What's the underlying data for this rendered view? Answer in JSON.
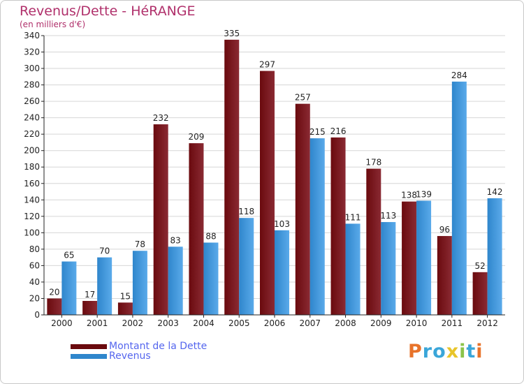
{
  "colors": {
    "debt": "#6a0a0e",
    "debt_light": "#8a2a33",
    "revenue": "#2f86cc",
    "revenue_light": "#5aaaea",
    "title": "#b0306b",
    "legend_text": "#5566ee"
  },
  "chart_data": {
    "type": "bar",
    "title": "Revenus/Dette - HéRANGE",
    "subtitle": "(en milliers d'€)",
    "xlabel": "",
    "ylabel": "",
    "ylim": [
      0,
      340
    ],
    "yticks": [
      0,
      20,
      40,
      60,
      80,
      100,
      120,
      140,
      160,
      180,
      200,
      220,
      240,
      260,
      280,
      300,
      320,
      340
    ],
    "grid": true,
    "legend_position": "bottom-left",
    "categories": [
      "2000",
      "2001",
      "2002",
      "2003",
      "2004",
      "2005",
      "2006",
      "2007",
      "2008",
      "2009",
      "2010",
      "2011",
      "2012"
    ],
    "series": [
      {
        "name": "Montant de la Dette",
        "values": [
          20,
          17,
          15,
          232,
          209,
          335,
          297,
          257,
          216,
          178,
          138,
          96,
          52
        ]
      },
      {
        "name": "Revenus",
        "values": [
          65,
          70,
          78,
          83,
          88,
          118,
          103,
          215,
          111,
          113,
          139,
          284,
          142
        ]
      }
    ]
  },
  "legend": {
    "debt_label": "Montant de la Dette",
    "revenue_label": "Revenus"
  },
  "logo": {
    "letters": [
      "P",
      "r",
      "o",
      "x",
      "i",
      "t",
      "i"
    ],
    "colors": [
      "#e8732a",
      "#3aa6d9",
      "#3aa6d9",
      "#e8c52a",
      "#8bc34a",
      "#3aa6d9",
      "#e8732a"
    ]
  }
}
